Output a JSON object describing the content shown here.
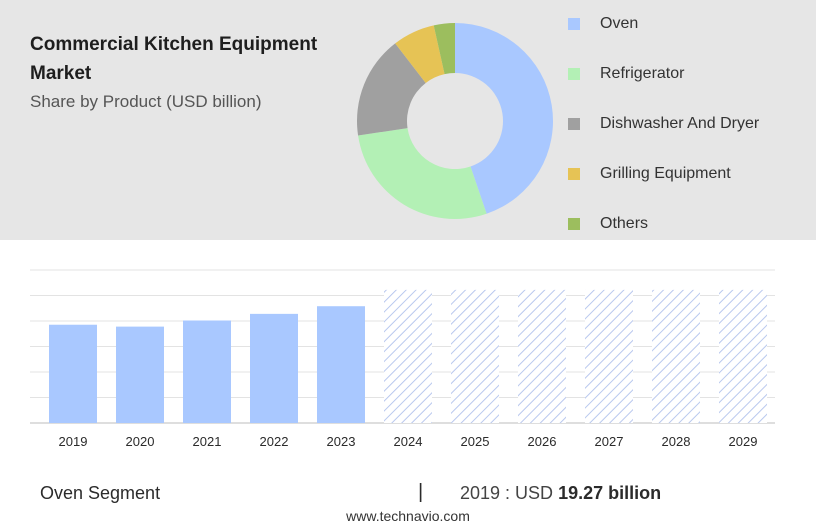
{
  "header": {
    "title": "Commercial Kitchen Equipment Market",
    "subtitle": "Share by Product (USD billion)"
  },
  "colors": {
    "forecast_hatch": "#b9c8ee",
    "bar": "#a9c8ff"
  },
  "chart_data": [
    {
      "type": "pie",
      "subtype": "donut",
      "title": "",
      "legend_position": "right",
      "slices": [
        {
          "label": "Oven",
          "value": 45,
          "color": "#a9c8ff"
        },
        {
          "label": "Refrigerator",
          "value": 28,
          "color": "#b3f0b5"
        },
        {
          "label": "Dishwasher And Dryer",
          "value": 17,
          "color": "#a0a0a0"
        },
        {
          "label": "Grilling Equipment",
          "value": 7,
          "color": "#e6c355"
        },
        {
          "label": "Others",
          "value": 3.5,
          "color": "#9cbe5e"
        }
      ]
    },
    {
      "type": "bar",
      "title": "",
      "xlabel": "",
      "ylabel": "",
      "grid": true,
      "ylim": [
        0,
        30
      ],
      "categories": [
        "2019",
        "2020",
        "2021",
        "2022",
        "2023",
        "2024",
        "2025",
        "2026",
        "2027",
        "2028",
        "2029"
      ],
      "values": [
        19.27,
        18.9,
        20.1,
        21.4,
        22.9,
        null,
        null,
        null,
        null,
        null,
        null
      ],
      "forecast": [
        false,
        false,
        false,
        false,
        false,
        true,
        true,
        true,
        true,
        true,
        true
      ]
    }
  ],
  "footer": {
    "segment_label": "Oven Segment",
    "divider": "|",
    "year_prefix": "2019 : USD",
    "value_text": "19.27 billion",
    "url": "www.technavio.com"
  }
}
